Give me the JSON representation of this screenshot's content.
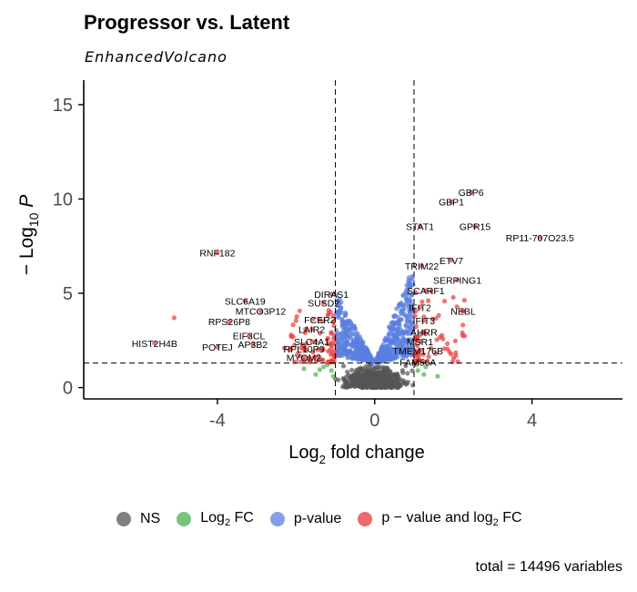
{
  "chart_data": {
    "type": "scatter",
    "title": "Progressor vs. Latent",
    "subtitle": "EnhancedVolcano",
    "xlabel": "Log2 fold change",
    "ylabel": "-Log10 P",
    "xlim": [
      -7.4,
      6.3
    ],
    "ylim": [
      -0.6,
      16.3
    ],
    "x_ticks": [
      -4,
      0,
      4
    ],
    "y_ticks": [
      0,
      5,
      10,
      15
    ],
    "x_tick_labels": [
      "-4",
      "0",
      "4"
    ],
    "y_tick_labels": [
      "0",
      "5",
      "10",
      "15"
    ],
    "fc_cutoff": 1,
    "p_cutoff_y": 1.3,
    "caption": "total = 14496 variables",
    "colors": {
      "NS": "#555555",
      "FC": "#4caf50",
      "P": "#5a7fe0",
      "P_FC": "#e83a3a"
    },
    "legend": {
      "ns": "NS",
      "log2fc_pre": "Log",
      "log2fc_sub": "2",
      "log2fc_post": " FC",
      "pvalue": "p-value",
      "pfc_pre": "p − value and log",
      "pfc_sub": "2",
      "pfc_post": " FC"
    },
    "labeled_points": [
      {
        "label": "GBP6",
        "x": 2.45,
        "y": 10.35
      },
      {
        "label": "GBP1",
        "x": 1.95,
        "y": 9.85
      },
      {
        "label": "STAT1",
        "x": 1.15,
        "y": 8.55
      },
      {
        "label": "GPR15",
        "x": 2.55,
        "y": 8.55
      },
      {
        "label": "RP11-707O23.5",
        "x": 4.2,
        "y": 7.95
      },
      {
        "label": "RNF182",
        "x": -4.0,
        "y": 7.15
      },
      {
        "label": "ETV7",
        "x": 1.95,
        "y": 6.75
      },
      {
        "label": "TRIM22",
        "x": 1.2,
        "y": 6.45
      },
      {
        "label": "SERPING1",
        "x": 2.1,
        "y": 5.7
      },
      {
        "label": "SCARF1",
        "x": 1.3,
        "y": 5.15
      },
      {
        "label": "DIRAS1",
        "x": -1.1,
        "y": 4.95
      },
      {
        "label": "SLC6A19",
        "x": -3.3,
        "y": 4.6
      },
      {
        "label": "SUSD2",
        "x": -1.3,
        "y": 4.5
      },
      {
        "label": "IFIT2",
        "x": 1.15,
        "y": 4.25
      },
      {
        "label": "NEBL",
        "x": 2.25,
        "y": 4.05
      },
      {
        "label": "MTCO3P12",
        "x": -2.9,
        "y": 4.05
      },
      {
        "label": "FCER2",
        "x": -1.4,
        "y": 3.6
      },
      {
        "label": "RPS26P8",
        "x": -3.7,
        "y": 3.5
      },
      {
        "label": "IFIT3",
        "x": 1.25,
        "y": 3.55
      },
      {
        "label": "LAIR2",
        "x": -1.6,
        "y": 3.1
      },
      {
        "label": "AHRR",
        "x": 1.25,
        "y": 2.95
      },
      {
        "label": "EIF3CL",
        "x": -3.2,
        "y": 2.75
      },
      {
        "label": "SLC4A1",
        "x": -1.6,
        "y": 2.45
      },
      {
        "label": "HIST2H4B",
        "x": -5.6,
        "y": 2.35
      },
      {
        "label": "MSR1",
        "x": 1.15,
        "y": 2.45
      },
      {
        "label": "AP3B2",
        "x": -3.1,
        "y": 2.3
      },
      {
        "label": "POTEJ",
        "x": -4.0,
        "y": 2.15
      },
      {
        "label": "RPL10P9",
        "x": -1.8,
        "y": 2.05
      },
      {
        "label": "TMEM176B",
        "x": 1.1,
        "y": 1.95
      },
      {
        "label": "MYOM2",
        "x": -1.8,
        "y": 1.6
      },
      {
        "label": "FAM56A",
        "x": 1.1,
        "y": 1.35
      }
    ]
  }
}
